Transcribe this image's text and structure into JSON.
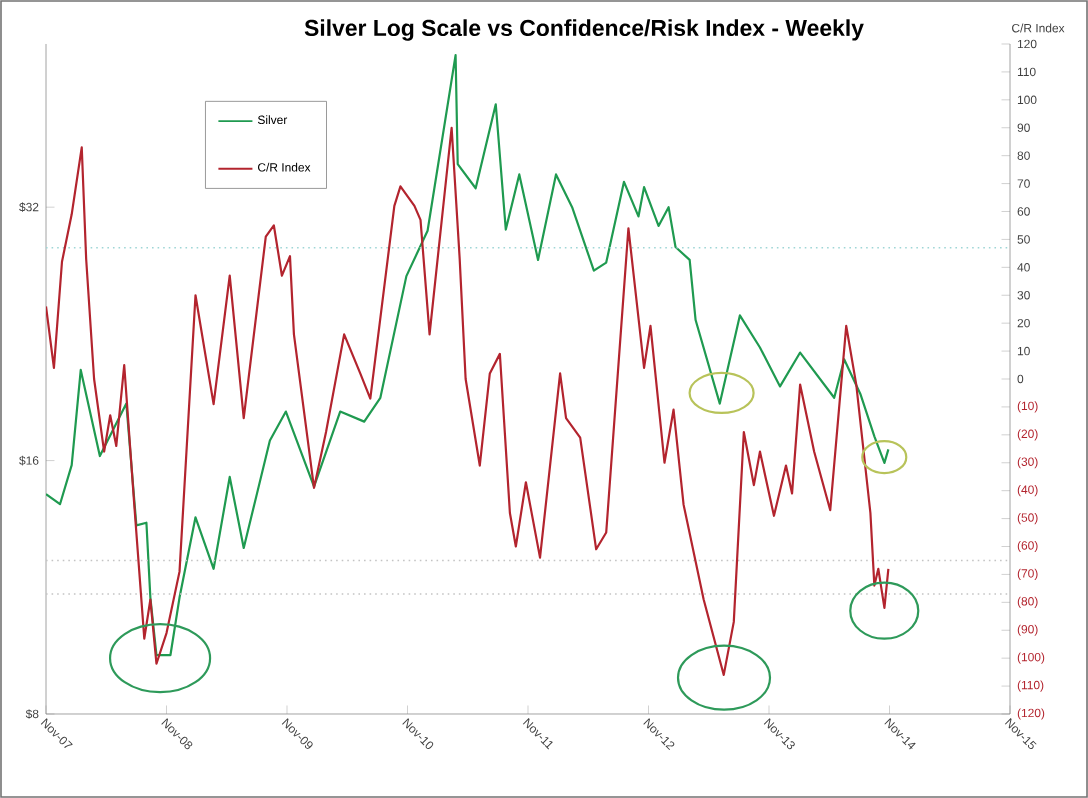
{
  "chart_data": {
    "type": "line",
    "title": "Silver Log Scale vs Confidence/Risk Index - Weekly",
    "y2label": "C/R Index",
    "log": "y",
    "legend": "top left",
    "line_style": "solid",
    "xlim": [
      "2007-11-01",
      "2015-11-01"
    ],
    "xticks": [
      {
        "value": "2007-11-01",
        "label": "Nov-07"
      },
      {
        "value": "2008-11-01",
        "label": "Nov-08"
      },
      {
        "value": "2009-11-01",
        "label": "Nov-09"
      },
      {
        "value": "2010-11-01",
        "label": "Nov-10"
      },
      {
        "value": "2011-11-01",
        "label": "Nov-11"
      },
      {
        "value": "2012-11-01",
        "label": "Nov-12"
      },
      {
        "value": "2013-11-01",
        "label": "Nov-13"
      },
      {
        "value": "2014-11-01",
        "label": "Nov-14"
      },
      {
        "value": "2015-11-01",
        "label": "Nov-15"
      }
    ],
    "ylim": [
      8,
      50
    ],
    "yticks": [
      {
        "value": 8,
        "label": "$8"
      },
      {
        "value": 16,
        "label": "$16"
      },
      {
        "value": 32,
        "label": "$32"
      }
    ],
    "y2lim": [
      -120,
      120
    ],
    "y2ticks": [
      {
        "value": -120,
        "label": "(120)"
      },
      {
        "value": -110,
        "label": "(110)"
      },
      {
        "value": -100,
        "label": "(100)"
      },
      {
        "value": -90,
        "label": "(90)"
      },
      {
        "value": -80,
        "label": "(80)"
      },
      {
        "value": -70,
        "label": "(70)"
      },
      {
        "value": -60,
        "label": "(60)"
      },
      {
        "value": -50,
        "label": "(50)"
      },
      {
        "value": -40,
        "label": "(40)"
      },
      {
        "value": -30,
        "label": "(30)"
      },
      {
        "value": -20,
        "label": "(20)"
      },
      {
        "value": -10,
        "label": "(10)"
      },
      0,
      10,
      20,
      30,
      40,
      50,
      60,
      70,
      80,
      90,
      100,
      110,
      120
    ],
    "ref_lines": [
      {
        "axis": "y2",
        "value": 47,
        "color": "#9fd6d6",
        "line_style": "dotted"
      },
      {
        "axis": "y2",
        "value": -65,
        "color": "#c4c4c4",
        "line_style": "dotted"
      },
      {
        "axis": "y2",
        "value": -77,
        "color": "#c4c4c4",
        "line_style": "dotted"
      }
    ],
    "series": [
      {
        "name": "Silver",
        "color": "#1f9a50",
        "x": [
          "2007-11-01",
          "2007-12-13",
          "2008-01-18",
          "2008-02-15",
          "2008-04-12",
          "2008-07-01",
          "2008-08-01",
          "2008-09-01",
          "2008-09-13",
          "2008-10-01",
          "2008-11-13",
          "2008-12-10",
          "2009-01-28",
          "2009-03-22",
          "2009-05-10",
          "2009-06-22",
          "2009-09-10",
          "2009-10-28",
          "2010-01-22",
          "2010-04-10",
          "2010-06-22",
          "2010-08-10",
          "2010-10-28",
          "2011-01-01",
          "2011-03-25",
          "2011-04-01",
          "2011-05-25",
          "2011-07-25",
          "2011-08-25",
          "2011-10-05",
          "2011-12-01",
          "2012-01-25",
          "2012-03-13",
          "2012-05-18",
          "2012-06-25",
          "2012-08-18",
          "2012-10-01",
          "2012-10-18",
          "2012-12-01",
          "2013-01-01",
          "2013-01-22",
          "2013-03-04",
          "2013-03-22",
          "2013-06-04",
          "2013-08-04",
          "2013-10-04",
          "2013-12-04",
          "2014-02-04",
          "2014-05-16",
          "2014-06-16",
          "2014-08-04",
          "2014-09-16",
          "2014-10-16",
          "2014-10-28"
        ],
        "values": [
          14.6,
          14.2,
          15.8,
          20.5,
          16.2,
          18.7,
          13.4,
          13.5,
          11.0,
          9.4,
          9.4,
          11.0,
          13.7,
          11.9,
          15.3,
          12.6,
          16.9,
          18.3,
          14.9,
          18.3,
          17.8,
          19.0,
          26.5,
          30.0,
          48.5,
          36.0,
          33.7,
          42.4,
          30.1,
          35.0,
          27.7,
          35.0,
          32.0,
          26.9,
          27.5,
          34.3,
          31.2,
          33.8,
          30.4,
          32.0,
          28.7,
          27.7,
          23.5,
          18.7,
          23.8,
          21.8,
          19.6,
          21.5,
          19.0,
          21.1,
          19.2,
          17.1,
          15.9,
          16.5
        ]
      },
      {
        "name": "C/R Index",
        "color": "#b3242e",
        "axis": "y2",
        "x": [
          "2007-11-01",
          "2007-11-25",
          "2007-12-19",
          "2008-01-18",
          "2008-02-18",
          "2008-03-01",
          "2008-03-25",
          "2008-04-25",
          "2008-05-13",
          "2008-06-01",
          "2008-06-25",
          "2008-07-25",
          "2008-08-25",
          "2008-09-13",
          "2008-10-01",
          "2008-11-01",
          "2008-12-10",
          "2009-01-28",
          "2009-03-22",
          "2009-05-10",
          "2009-06-22",
          "2009-08-28",
          "2009-09-22",
          "2009-10-16",
          "2009-11-10",
          "2009-11-22",
          "2010-01-22",
          "2010-02-28",
          "2010-04-22",
          "2010-06-10",
          "2010-07-10",
          "2010-09-22",
          "2010-10-10",
          "2010-11-22",
          "2010-12-10",
          "2011-01-07",
          "2011-03-13",
          "2011-04-07",
          "2011-04-25",
          "2011-06-07",
          "2011-07-07",
          "2011-08-07",
          "2011-09-07",
          "2011-09-25",
          "2011-10-25",
          "2011-12-07",
          "2012-02-07",
          "2012-02-25",
          "2012-04-07",
          "2012-05-25",
          "2012-06-25",
          "2012-09-01",
          "2012-10-18",
          "2012-11-07",
          "2012-12-19",
          "2013-01-16",
          "2013-02-16",
          "2013-04-16",
          "2013-06-16",
          "2013-07-16",
          "2013-08-16",
          "2013-09-16",
          "2013-10-04",
          "2013-11-16",
          "2013-12-22",
          "2014-01-10",
          "2014-02-04",
          "2014-03-16",
          "2014-05-04",
          "2014-06-22",
          "2014-07-22",
          "2014-09-04",
          "2014-09-16",
          "2014-09-28",
          "2014-10-16",
          "2014-10-28"
        ],
        "values": [
          26,
          4,
          42,
          59,
          83,
          43,
          0,
          -26,
          -13,
          -24,
          5,
          -45,
          -93,
          -79,
          -102,
          -91,
          -69,
          30,
          -9,
          37,
          -14,
          51,
          55,
          37,
          44,
          16,
          -39,
          -19,
          16,
          2,
          -7,
          62,
          69,
          62,
          57,
          16,
          90,
          43,
          0,
          -31,
          2,
          9,
          -48,
          -60,
          -37,
          -64,
          2,
          -14,
          -21,
          -61,
          -55,
          54,
          4,
          19,
          -30,
          -11,
          -45,
          -79,
          -106,
          -87,
          -19,
          -38,
          -26,
          -49,
          -31,
          -41,
          -2,
          -26,
          -47,
          19,
          -2,
          -48,
          -74,
          -68,
          -82,
          -68
        ]
      }
    ]
  }
}
